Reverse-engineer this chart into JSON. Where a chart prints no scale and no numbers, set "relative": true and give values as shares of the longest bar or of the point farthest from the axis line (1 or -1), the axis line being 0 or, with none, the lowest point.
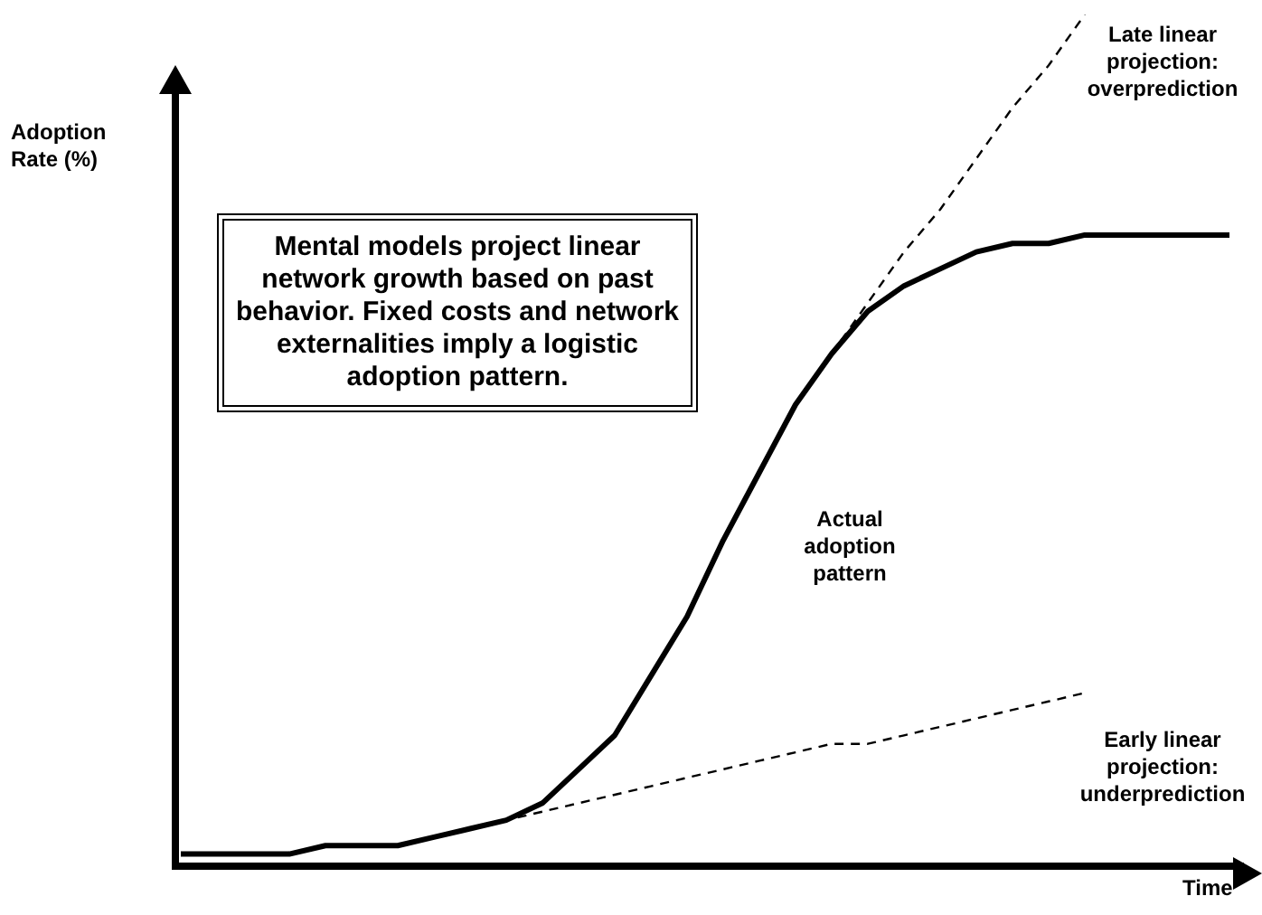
{
  "chart_data": {
    "type": "line",
    "relative": true,
    "xlabel": "Time",
    "ylabel": "Adoption Rate (%)",
    "categories": [
      null,
      null,
      null,
      null,
      null,
      null,
      null,
      null,
      null,
      null,
      null,
      null,
      null,
      null,
      null,
      null,
      null,
      null,
      null,
      null,
      null,
      null,
      null,
      null,
      null,
      null,
      null,
      null,
      null,
      null
    ],
    "series": [
      {
        "name": "Actual adoption pattern",
        "color": "#000000",
        "line_style": "solid",
        "values": [
          0.01,
          0.01,
          0.01,
          0.01,
          0.02,
          0.02,
          0.02,
          0.03,
          0.04,
          0.05,
          0.07,
          0.11,
          0.15,
          0.22,
          0.29,
          0.38,
          0.46,
          0.54,
          0.6,
          0.65,
          0.68,
          0.7,
          0.72,
          0.73,
          0.73,
          0.74,
          0.74,
          0.74,
          0.74,
          0.74
        ]
      },
      {
        "name": "Late linear projection: overprediction",
        "color": "#000000",
        "line_style": "dashed",
        "values": [
          null,
          null,
          null,
          null,
          null,
          null,
          null,
          null,
          null,
          null,
          null,
          null,
          null,
          null,
          null,
          null,
          null,
          null,
          0.6,
          0.66,
          0.72,
          0.77,
          0.83,
          0.89,
          0.94,
          1,
          null,
          null,
          null,
          null
        ]
      },
      {
        "name": "Early linear projection: underprediction",
        "color": "#000000",
        "line_style": "dashed",
        "values": [
          null,
          null,
          null,
          null,
          null,
          null,
          null,
          null,
          0.04,
          0.05,
          0.06,
          0.07,
          0.08,
          0.09,
          0.1,
          0.11,
          0.12,
          0.13,
          0.14,
          0.14,
          0.15,
          0.16,
          0.17,
          0.18,
          0.19,
          0.2,
          null,
          null,
          null,
          null
        ]
      }
    ],
    "annotations": [
      "Mental models project linear network growth based on past behavior. Fixed costs and network externalities imply a logistic adoption pattern."
    ]
  }
}
